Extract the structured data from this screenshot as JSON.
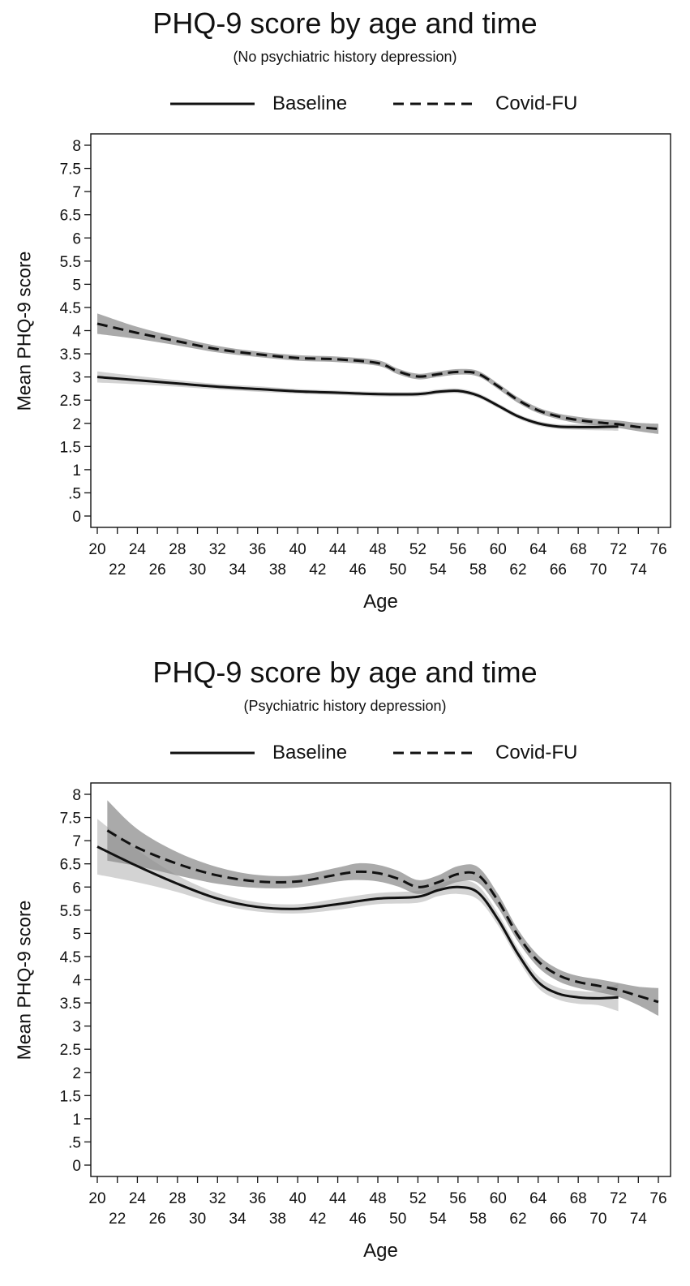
{
  "chart_data": [
    {
      "type": "line",
      "title": "PHQ-9 score by age and time",
      "subtitle": "(No psychiatric history depression)",
      "xlabel": "Age",
      "ylabel": "Mean PHQ-9 score",
      "xlim": [
        20,
        76
      ],
      "ylim": [
        0,
        8
      ],
      "yticks": [
        0,
        0.5,
        1,
        1.5,
        2,
        2.5,
        3,
        3.5,
        4,
        4.5,
        5,
        5.5,
        6,
        6.5,
        7,
        7.5,
        8
      ],
      "ytick_labels": [
        "0",
        ".5",
        "1",
        "1.5",
        "2",
        "2.5",
        "3",
        "3.5",
        "4",
        "4.5",
        "5",
        "5.5",
        "6",
        "6.5",
        "7",
        "7.5",
        "8"
      ],
      "xticks_top": [
        "20",
        "24",
        "28",
        "32",
        "36",
        "40",
        "44",
        "48",
        "52",
        "56",
        "60",
        "64",
        "68",
        "72",
        "76"
      ],
      "xticks_bottom": [
        "22",
        "26",
        "30",
        "34",
        "38",
        "42",
        "46",
        "50",
        "54",
        "58",
        "62",
        "66",
        "70",
        "74"
      ],
      "legend": [
        "Baseline",
        "Covid-FU"
      ],
      "grid": false,
      "series": [
        {
          "name": "Baseline",
          "style": "solid",
          "x": [
            20,
            24,
            28,
            32,
            36,
            40,
            44,
            48,
            52,
            54,
            56,
            58,
            60,
            62,
            64,
            66,
            68,
            70,
            72
          ],
          "values": [
            3.0,
            2.93,
            2.86,
            2.79,
            2.74,
            2.69,
            2.66,
            2.63,
            2.63,
            2.68,
            2.7,
            2.6,
            2.38,
            2.15,
            2.0,
            1.93,
            1.92,
            1.92,
            1.93
          ],
          "ci_halfwidth": [
            0.12,
            0.09,
            0.07,
            0.06,
            0.06,
            0.05,
            0.05,
            0.05,
            0.05,
            0.05,
            0.05,
            0.05,
            0.05,
            0.05,
            0.05,
            0.05,
            0.06,
            0.07,
            0.09
          ]
        },
        {
          "name": "Covid-FU",
          "style": "dashed",
          "x": [
            20,
            24,
            28,
            32,
            36,
            40,
            44,
            48,
            50,
            52,
            54,
            56,
            58,
            60,
            62,
            64,
            66,
            68,
            70,
            72,
            74,
            76
          ],
          "values": [
            4.15,
            3.95,
            3.77,
            3.6,
            3.49,
            3.41,
            3.38,
            3.3,
            3.12,
            3.01,
            3.06,
            3.11,
            3.07,
            2.8,
            2.5,
            2.28,
            2.15,
            2.07,
            2.02,
            1.98,
            1.92,
            1.88
          ],
          "ci_halfwidth": [
            0.22,
            0.13,
            0.09,
            0.07,
            0.06,
            0.06,
            0.06,
            0.06,
            0.06,
            0.06,
            0.06,
            0.06,
            0.06,
            0.06,
            0.06,
            0.06,
            0.06,
            0.07,
            0.07,
            0.08,
            0.09,
            0.11
          ]
        }
      ]
    },
    {
      "type": "line",
      "title": "PHQ-9 score by age and time",
      "subtitle": "(Psychiatric history depression)",
      "xlabel": "Age",
      "ylabel": "Mean PHQ-9 score",
      "xlim": [
        20,
        76
      ],
      "ylim": [
        0,
        8
      ],
      "yticks": [
        0,
        0.5,
        1,
        1.5,
        2,
        2.5,
        3,
        3.5,
        4,
        4.5,
        5,
        5.5,
        6,
        6.5,
        7,
        7.5,
        8
      ],
      "ytick_labels": [
        "0",
        ".5",
        "1",
        "1.5",
        "2",
        "2.5",
        "3",
        "3.5",
        "4",
        "4.5",
        "5",
        "5.5",
        "6",
        "6.5",
        "7",
        "7.5",
        "8"
      ],
      "xticks_top": [
        "20",
        "24",
        "28",
        "32",
        "36",
        "40",
        "44",
        "48",
        "52",
        "56",
        "60",
        "64",
        "68",
        "72",
        "76"
      ],
      "xticks_bottom": [
        "22",
        "26",
        "30",
        "34",
        "38",
        "42",
        "46",
        "50",
        "54",
        "58",
        "62",
        "66",
        "70",
        "74"
      ],
      "legend": [
        "Baseline",
        "Covid-FU"
      ],
      "grid": false,
      "series": [
        {
          "name": "Baseline",
          "style": "solid",
          "x": [
            20,
            24,
            28,
            32,
            36,
            40,
            44,
            48,
            52,
            54,
            56,
            58,
            60,
            62,
            64,
            66,
            68,
            70,
            72
          ],
          "values": [
            6.87,
            6.45,
            6.07,
            5.75,
            5.57,
            5.53,
            5.63,
            5.75,
            5.79,
            5.93,
            6.0,
            5.88,
            5.3,
            4.55,
            3.95,
            3.7,
            3.62,
            3.6,
            3.62
          ],
          "ci_halfwidth": [
            0.6,
            0.35,
            0.18,
            0.12,
            0.1,
            0.1,
            0.12,
            0.12,
            0.13,
            0.13,
            0.15,
            0.15,
            0.13,
            0.12,
            0.13,
            0.13,
            0.14,
            0.15,
            0.3
          ]
        },
        {
          "name": "Covid-FU",
          "style": "dashed",
          "x": [
            21,
            24,
            28,
            32,
            36,
            40,
            44,
            46,
            48,
            50,
            52,
            54,
            56,
            58,
            60,
            62,
            64,
            66,
            68,
            70,
            72,
            74,
            76
          ],
          "values": [
            7.22,
            6.85,
            6.5,
            6.25,
            6.12,
            6.12,
            6.27,
            6.33,
            6.3,
            6.18,
            6.0,
            6.1,
            6.28,
            6.26,
            5.7,
            4.95,
            4.4,
            4.1,
            3.95,
            3.87,
            3.78,
            3.65,
            3.52
          ],
          "ci_halfwidth": [
            0.65,
            0.4,
            0.25,
            0.18,
            0.14,
            0.13,
            0.15,
            0.18,
            0.18,
            0.17,
            0.15,
            0.15,
            0.17,
            0.17,
            0.15,
            0.13,
            0.13,
            0.13,
            0.13,
            0.14,
            0.15,
            0.2,
            0.3
          ]
        }
      ]
    }
  ]
}
